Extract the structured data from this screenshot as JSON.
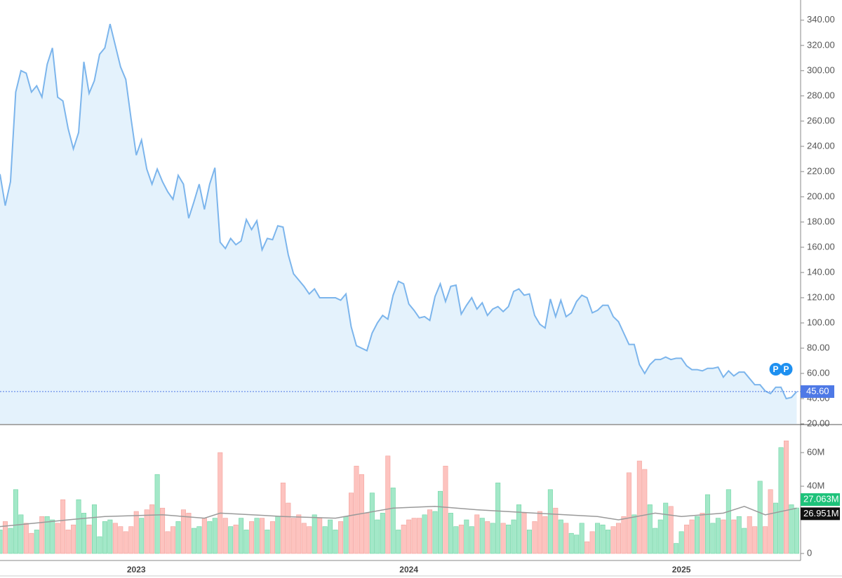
{
  "chart_data": {
    "type": "stock",
    "categories": [
      null,
      null,
      null,
      null,
      null,
      null,
      null,
      null,
      null,
      null,
      null,
      null,
      null,
      null,
      null,
      null,
      null,
      null,
      null,
      null,
      null,
      null,
      null,
      null,
      null,
      null,
      "2023",
      null,
      null,
      null,
      null,
      null,
      null,
      null,
      null,
      null,
      null,
      null,
      null,
      null,
      null,
      null,
      null,
      null,
      null,
      null,
      null,
      null,
      null,
      null,
      null,
      null,
      null,
      null,
      null,
      null,
      null,
      null,
      null,
      null,
      null,
      null,
      null,
      null,
      null,
      null,
      null,
      null,
      null,
      null,
      null,
      null,
      null,
      null,
      null,
      null,
      null,
      null,
      "2024",
      null,
      null,
      null,
      null,
      null,
      null,
      null,
      null,
      null,
      null,
      null,
      null,
      null,
      null,
      null,
      null,
      null,
      null,
      null,
      null,
      null,
      null,
      null,
      null,
      null,
      null,
      null,
      null,
      null,
      null,
      null,
      null,
      null,
      null,
      null,
      null,
      null,
      null,
      null,
      null,
      null,
      null,
      null,
      null,
      null,
      null,
      null,
      null,
      null,
      null,
      null,
      "2025",
      null,
      null,
      null,
      null,
      null,
      null,
      null,
      null,
      null,
      null,
      null,
      null,
      null,
      null,
      null,
      null,
      null,
      null,
      null,
      null,
      null,
      null
    ],
    "price": {
      "color": "#7cb5ec",
      "fill": "#e4f2fc",
      "values": [
        218,
        193,
        212,
        283,
        300,
        298,
        283,
        288,
        279,
        305,
        318,
        279,
        276,
        254,
        238,
        251,
        307,
        282,
        292,
        313,
        318,
        337,
        320,
        303,
        293,
        262,
        233,
        245,
        222,
        210,
        222,
        212,
        204,
        198,
        217,
        210,
        183,
        196,
        210,
        190,
        210,
        223,
        164,
        159,
        167,
        162,
        165,
        182,
        174,
        181,
        158,
        167,
        166,
        177,
        176,
        154,
        139,
        134,
        129,
        123,
        127,
        120,
        120,
        120,
        120,
        118,
        123,
        97,
        82,
        80,
        78,
        92,
        100,
        106,
        103,
        122,
        133,
        131,
        115,
        110,
        104,
        105,
        102,
        121,
        131,
        117,
        129,
        130,
        107,
        114,
        120,
        111,
        116,
        106,
        111,
        113,
        109,
        113,
        125,
        127,
        122,
        123,
        106,
        99,
        96,
        119,
        105,
        118,
        105,
        108,
        117,
        122,
        120,
        108,
        110,
        114,
        114,
        105,
        101,
        92,
        83,
        83,
        67,
        60,
        67,
        71,
        71,
        73,
        71,
        72,
        72,
        66,
        63,
        63,
        62,
        64,
        64,
        65,
        57,
        62,
        58,
        61,
        61,
        56,
        51,
        51,
        46,
        44,
        49,
        49,
        40,
        41,
        45.6
      ],
      "last_label": "45.60",
      "last_color": "#4e79e6",
      "ylim": [
        20,
        356
      ],
      "yticks": [
        {
          "value": 20,
          "label": "20.00"
        },
        {
          "value": 40,
          "label": "40.00"
        },
        {
          "value": 60,
          "label": "60.00"
        },
        {
          "value": 80,
          "label": "80.00"
        },
        {
          "value": 100,
          "label": "100.00"
        },
        {
          "value": 120,
          "label": "120.00"
        },
        {
          "value": 140,
          "label": "140.00"
        },
        {
          "value": 160,
          "label": "160.00"
        },
        {
          "value": 180,
          "label": "180.00"
        },
        {
          "value": 200,
          "label": "200.00"
        },
        {
          "value": 220,
          "label": "220.00"
        },
        {
          "value": 240,
          "label": "240.00"
        },
        {
          "value": 260,
          "label": "260.00"
        },
        {
          "value": 280,
          "label": "280.00"
        },
        {
          "value": 300,
          "label": "300.00"
        },
        {
          "value": 320,
          "label": "320.00"
        },
        {
          "value": 340,
          "label": "340.00"
        }
      ],
      "events": [
        {
          "index": 148,
          "label": "P"
        },
        {
          "index": 150,
          "label": "P"
        }
      ],
      "event_color": "#1e90f0"
    },
    "volume": {
      "up_color": "#a3e8c8",
      "down_color": "#fdc3bf",
      "values": [
        14,
        19,
        15,
        38,
        23,
        18,
        12,
        14,
        22,
        22,
        20,
        18,
        32,
        14,
        17,
        32,
        24,
        17,
        29,
        10,
        19,
        20,
        18,
        16,
        13,
        16,
        25,
        21,
        26,
        29,
        47,
        27,
        13,
        16,
        19,
        26,
        24,
        15,
        16,
        21,
        19,
        21,
        60,
        21,
        16,
        17,
        21,
        14,
        19,
        21,
        21,
        14,
        19,
        22,
        42,
        30,
        21,
        23,
        18,
        16,
        23,
        21,
        16,
        20,
        14,
        19,
        22,
        36,
        52,
        47,
        24,
        36,
        20,
        24,
        58,
        39,
        14,
        17,
        20,
        21,
        21,
        23,
        26,
        25,
        37,
        52,
        24,
        16,
        17,
        20,
        16,
        23,
        21,
        19,
        18,
        42,
        18,
        17,
        20,
        29,
        24,
        14,
        19,
        25,
        22,
        38,
        27,
        20,
        18,
        12,
        11,
        18,
        7,
        13,
        18,
        17,
        14,
        16,
        18,
        22,
        48,
        23,
        55,
        50,
        29,
        15,
        20,
        30,
        28,
        6,
        13,
        17,
        20,
        22,
        24,
        35,
        18,
        21,
        20,
        38,
        20,
        22,
        15,
        22,
        16,
        43,
        16,
        38,
        30,
        63,
        67,
        29,
        27.063
      ],
      "last_label": "27.063M",
      "last_color": "#1ec27a",
      "ylim": [
        0,
        76
      ],
      "yticks": [
        0,
        {
          "value": 40,
          "label": "40M"
        },
        {
          "value": 60,
          "label": "60M"
        }
      ],
      "ma": {
        "color": "#9a9a9a",
        "x": [
          0,
          13,
          20,
          31,
          39,
          42,
          54,
          64,
          75,
          83,
          91,
          102,
          114,
          118,
          125,
          130,
          138,
          142,
          146,
          152
        ],
        "values": [
          16,
          20,
          22,
          23,
          21,
          24,
          22,
          21,
          27,
          28,
          26,
          24,
          22,
          20,
          24,
          22,
          24,
          28,
          23,
          26.951
        ],
        "last_label": "26.951M",
        "last_color": "#111111"
      }
    }
  }
}
